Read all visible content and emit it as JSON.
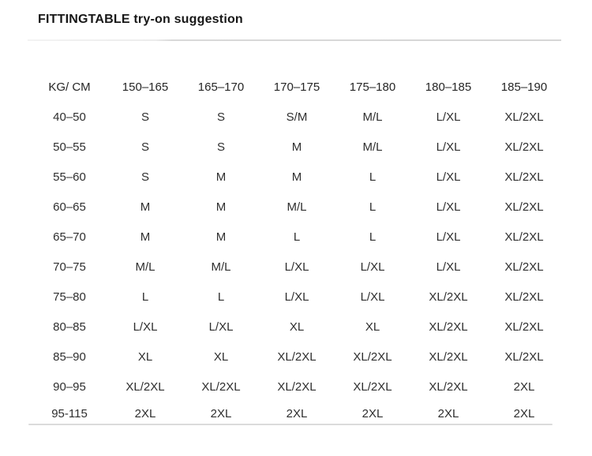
{
  "page": {
    "title": "FITTINGTABLE try-on suggestion"
  },
  "table": {
    "corner_label": "KG/ CM",
    "column_headers": [
      "150–165",
      "165–170",
      "170–175",
      "175–180",
      "180–185",
      "185–190"
    ],
    "rows": [
      {
        "weight": "40–50",
        "sizes": [
          "S",
          "S",
          "S/M",
          "M/L",
          "L/XL",
          "XL/2XL"
        ]
      },
      {
        "weight": "50–55",
        "sizes": [
          "S",
          "S",
          "M",
          "M/L",
          "L/XL",
          "XL/2XL"
        ]
      },
      {
        "weight": "55–60",
        "sizes": [
          "S",
          "M",
          "M",
          "L",
          "L/XL",
          "XL/2XL"
        ]
      },
      {
        "weight": "60–65",
        "sizes": [
          "M",
          "M",
          "M/L",
          "L",
          "L/XL",
          "XL/2XL"
        ]
      },
      {
        "weight": "65–70",
        "sizes": [
          "M",
          "M",
          "L",
          "L",
          "L/XL",
          "XL/2XL"
        ]
      },
      {
        "weight": "70–75",
        "sizes": [
          "M/L",
          "M/L",
          "L/XL",
          "L/XL",
          "L/XL",
          "XL/2XL"
        ]
      },
      {
        "weight": "75–80",
        "sizes": [
          "L",
          "L",
          "L/XL",
          "L/XL",
          "XL/2XL",
          "XL/2XL"
        ]
      },
      {
        "weight": "80–85",
        "sizes": [
          "L/XL",
          "L/XL",
          "XL",
          "XL",
          "XL/2XL",
          "XL/2XL"
        ]
      },
      {
        "weight": "85–90",
        "sizes": [
          "XL",
          "XL",
          "XL/2XL",
          "XL/2XL",
          "XL/2XL",
          "XL/2XL"
        ]
      },
      {
        "weight": "90–95",
        "sizes": [
          "XL/2XL",
          "XL/2XL",
          "XL/2XL",
          "XL/2XL",
          "XL/2XL",
          "2XL"
        ]
      },
      {
        "weight": "95-115",
        "sizes": [
          "2XL",
          "2XL",
          "2XL",
          "2XL",
          "2XL",
          "2XL"
        ]
      }
    ]
  },
  "colors": {
    "background": "#ffffff",
    "title_text": "#171717",
    "cell_text": "#2e2e2e",
    "divider": "#dbdbdb"
  }
}
